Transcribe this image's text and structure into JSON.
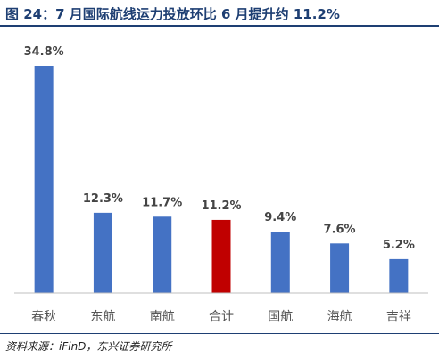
{
  "title": "图 24：7 月国际航线运力投放环比 6 月提升约 11.2%",
  "source": "资料来源：iFinD，东兴证券研究所",
  "colors": {
    "bar": "#4472c4",
    "highlight": "#c00000",
    "title": "#1e3f73"
  },
  "chart_data": {
    "type": "bar",
    "title": "7 月国际航线运力投放环比 6 月提升约 11.2%",
    "xlabel": "",
    "ylabel": "",
    "categories": [
      "春秋",
      "东航",
      "南航",
      "合计",
      "国航",
      "海航",
      "吉祥"
    ],
    "values": [
      34.8,
      12.3,
      11.7,
      11.2,
      9.4,
      7.6,
      5.2
    ],
    "value_labels": [
      "34.8%",
      "12.3%",
      "11.7%",
      "11.2%",
      "9.4%",
      "7.6%",
      "5.2%"
    ],
    "unit": "%",
    "highlight_index": 3,
    "ylim": [
      0,
      34.8
    ],
    "grid": false,
    "legend": "none"
  }
}
